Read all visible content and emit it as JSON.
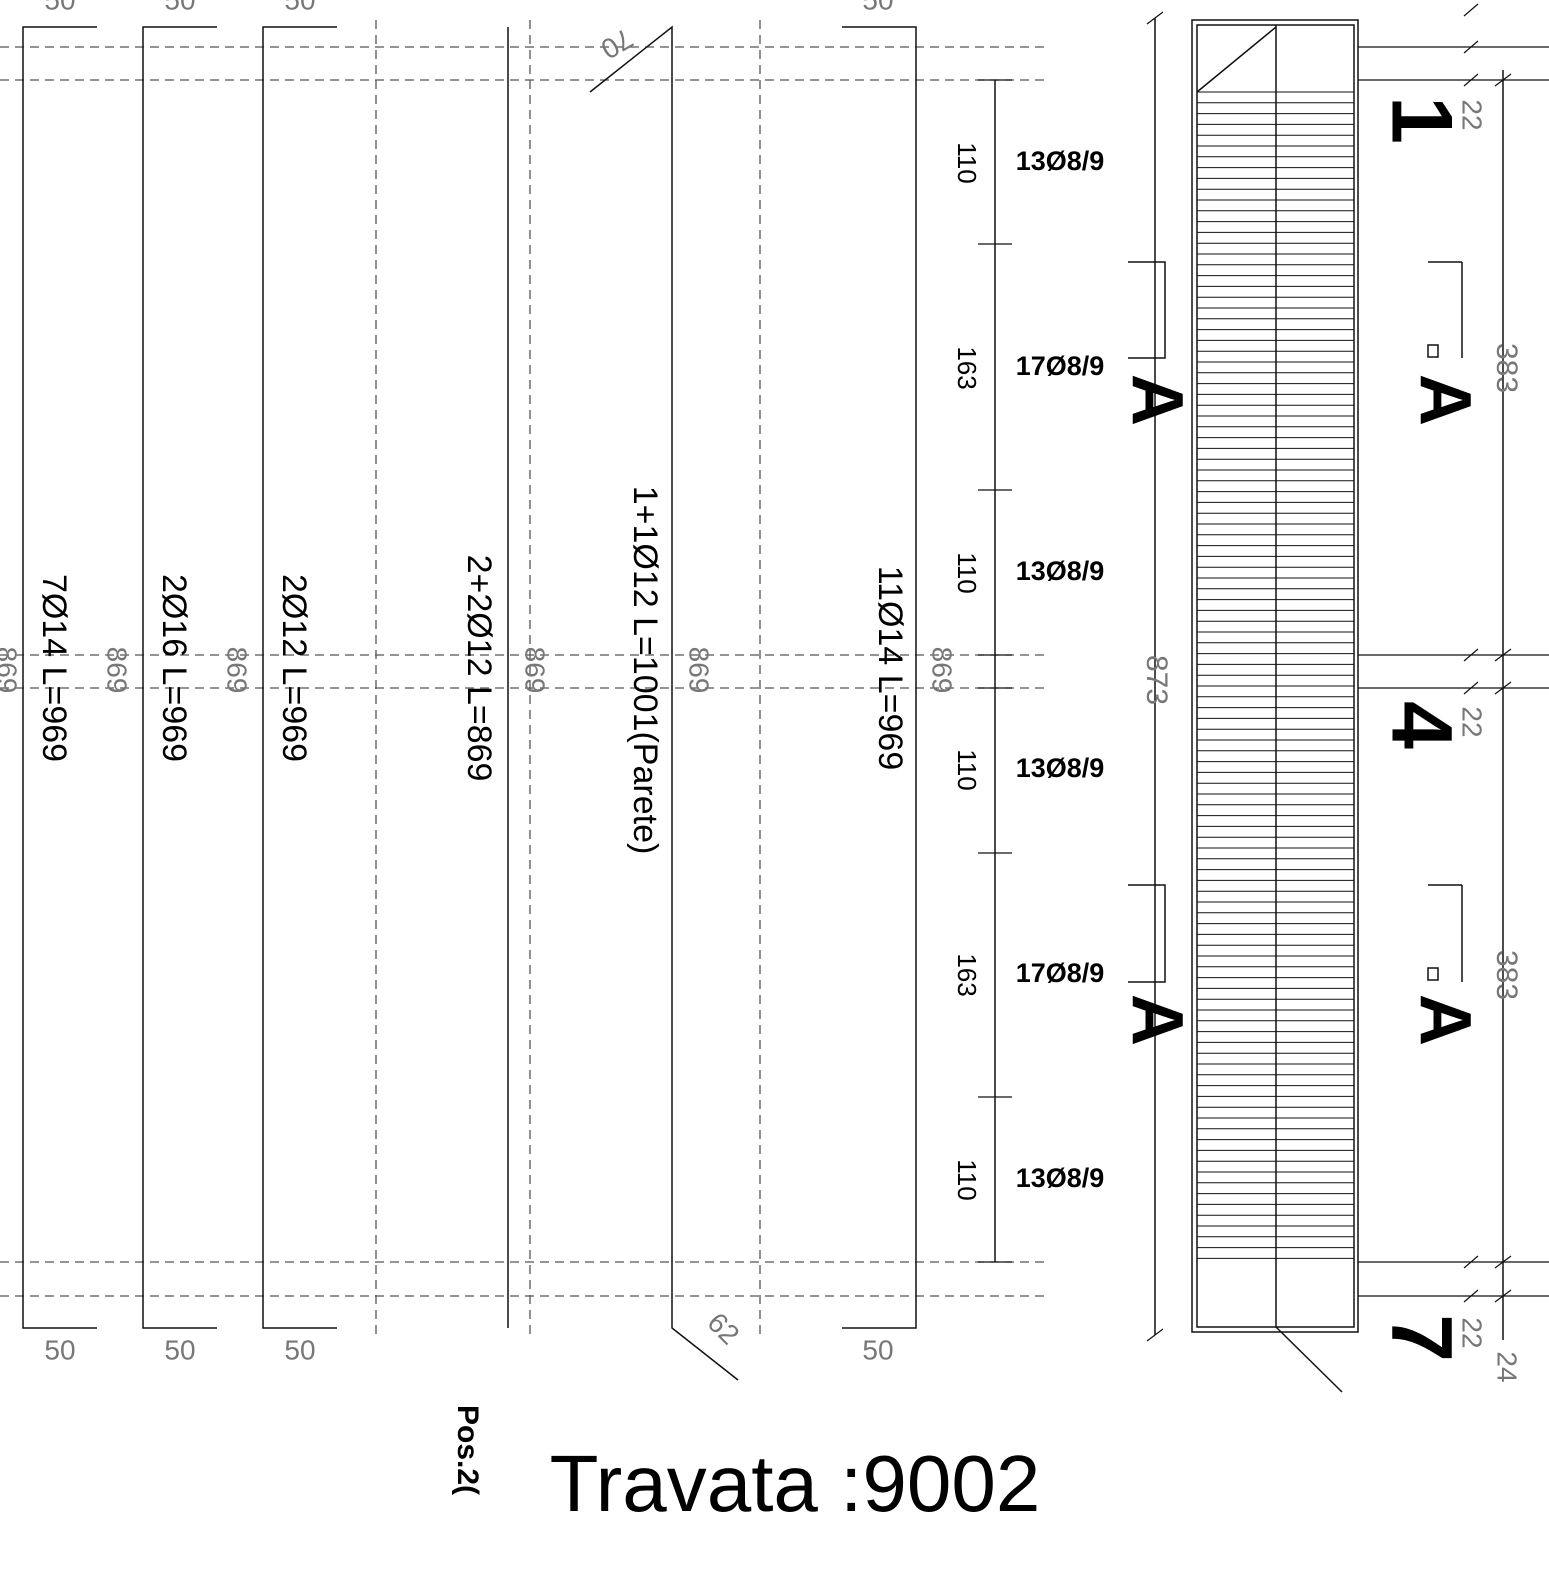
{
  "top_labels": [
    "50",
    "50",
    "50",
    "50"
  ],
  "bottom_labels": [
    "50",
    "50",
    "50",
    "50"
  ],
  "bars": [
    "7Ø14 L=969",
    "2Ø16 L=969",
    "2Ø12 L=969",
    "2+2Ø12 L=869",
    "1+1Ø12 L=1001(Parete)",
    "11Ø14 L=969"
  ],
  "lengths": [
    "869",
    "869",
    "869",
    "869",
    "869",
    "869"
  ],
  "hooks": [
    "70",
    "62"
  ],
  "stirrups": [
    {
      "length": "110",
      "label": "13Ø8/9"
    },
    {
      "length": "163",
      "label": "17Ø8/9"
    },
    {
      "length": "110",
      "label": "13Ø8/9"
    },
    {
      "length": "110",
      "label": "13Ø8/9"
    },
    {
      "length": "163",
      "label": "17Ø8/9"
    },
    {
      "length": "110",
      "label": "13Ø8/9"
    }
  ],
  "total_length": "873",
  "sections": [
    "A",
    "A",
    "A",
    "A"
  ],
  "supports": [
    "1",
    "4",
    "7"
  ],
  "support_dims": [
    "22",
    "22",
    "22",
    "24"
  ],
  "span_dims": [
    "383",
    "383"
  ],
  "title": "Travata :9002",
  "position": "Pos.2("
}
